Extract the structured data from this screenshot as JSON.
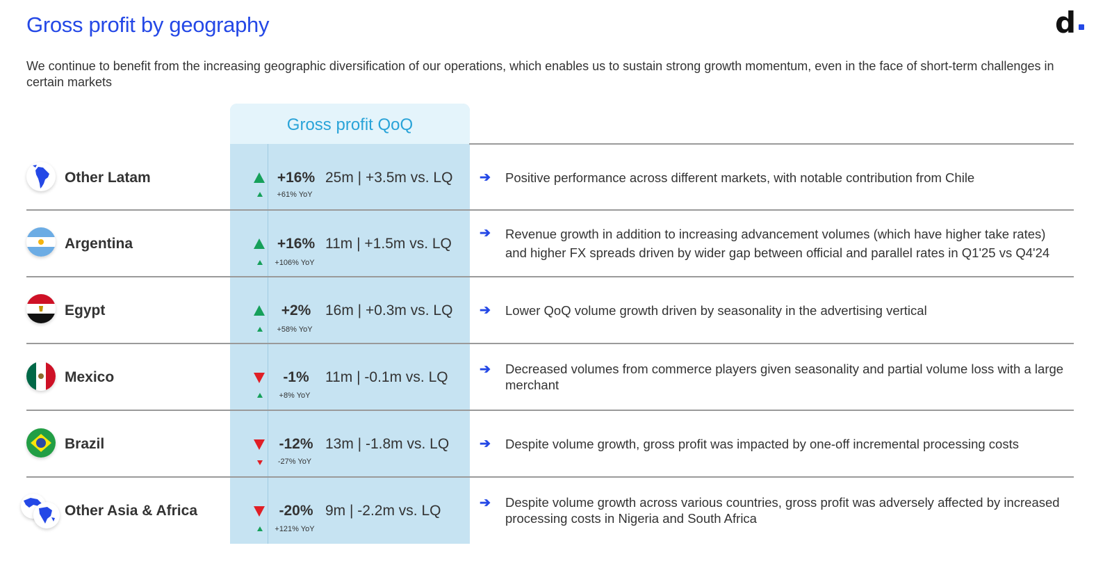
{
  "header": {
    "title": "Gross profit by geography",
    "logo_text": "d",
    "subtitle": "We continue to benefit from the increasing geographic diversification of our operations, which enables us to sustain strong growth momentum, even in the face of short-term challenges in certain markets"
  },
  "table": {
    "column_header": "Gross profit QoQ",
    "rows": [
      {
        "region": "Other Latam",
        "icon": "south-america-globe-icon",
        "trend": "up",
        "qoq": "+16%",
        "absolute": "25m | +3.5m vs. LQ",
        "yoy_trend": "up",
        "yoy": "+61% YoY",
        "arrow": "➔",
        "comment": "Positive performance across different markets, with notable contribution from Chile"
      },
      {
        "region": "Argentina",
        "icon": "argentina-flag-icon",
        "trend": "up",
        "qoq": "+16%",
        "absolute": "11m | +1.5m vs. LQ",
        "yoy_trend": "up",
        "yoy": "+106% YoY",
        "arrow": "➔",
        "comment": "Revenue growth in addition to increasing advancement volumes (which have higher take rates) and higher FX spreads driven by wider gap between official and parallel rates in Q1'25 vs Q4'24"
      },
      {
        "region": "Egypt",
        "icon": "egypt-flag-icon",
        "trend": "up",
        "qoq": "+2%",
        "absolute": "16m | +0.3m vs. LQ",
        "yoy_trend": "up",
        "yoy": "+58% YoY",
        "arrow": "➔",
        "comment": "Lower QoQ volume growth driven by seasonality in the advertising vertical"
      },
      {
        "region": "Mexico",
        "icon": "mexico-flag-icon",
        "trend": "down",
        "qoq": "-1%",
        "absolute": "11m | -0.1m vs. LQ",
        "yoy_trend": "up",
        "yoy": "+8% YoY",
        "arrow": "➔",
        "comment": "Decreased volumes from commerce players given seasonality and partial volume loss with a large merchant"
      },
      {
        "region": "Brazil",
        "icon": "brazil-flag-icon",
        "trend": "down",
        "qoq": "-12%",
        "absolute": "13m | -1.8m vs. LQ",
        "yoy_trend": "down",
        "yoy": "-27% YoY",
        "arrow": "➔",
        "comment": "Despite volume growth, gross profit was impacted by one-off incremental processing costs"
      },
      {
        "region": "Other Asia & Africa",
        "icon": "asia-africa-globe-icon",
        "trend": "down",
        "qoq": "-20%",
        "absolute": "9m | -2.2m vs. LQ",
        "yoy_trend": "up",
        "yoy": "+121% YoY",
        "arrow": "➔",
        "comment": "Despite volume growth across various countries, gross profit was adversely affected by increased processing costs in Nigeria and South Africa"
      }
    ]
  },
  "colors": {
    "title": "#2448e6",
    "accent": "#2448e6",
    "up": "#16a05a",
    "down": "#e01f26",
    "panel": "#c6e3f2",
    "panel_header": "#e4f4fb",
    "panel_header_text": "#29a3d8"
  }
}
